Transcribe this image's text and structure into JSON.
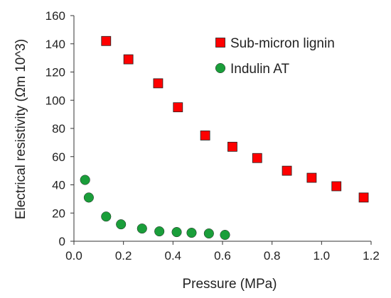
{
  "chart_data": {
    "type": "scatter",
    "xlabel": "Pressure (MPa)",
    "ylabel": "Electrical resistivity (Ωm 10^3)",
    "xlim": [
      0,
      1.2
    ],
    "ylim": [
      0,
      160
    ],
    "xticks": [
      "0.0",
      "0.2",
      "0.4",
      "0.6",
      "0.8",
      "1.0",
      "1.2"
    ],
    "yticks": [
      "0",
      "20",
      "40",
      "60",
      "80",
      "100",
      "120",
      "140",
      "160"
    ],
    "grid": false,
    "legend_position": "top-right",
    "series": [
      {
        "name": "Sub-micron lignin",
        "marker": "square",
        "color": "#ff0000",
        "points": [
          {
            "x": 0.13,
            "y": 142
          },
          {
            "x": 0.22,
            "y": 129
          },
          {
            "x": 0.34,
            "y": 112
          },
          {
            "x": 0.42,
            "y": 95
          },
          {
            "x": 0.53,
            "y": 75
          },
          {
            "x": 0.64,
            "y": 67
          },
          {
            "x": 0.74,
            "y": 59
          },
          {
            "x": 0.86,
            "y": 50
          },
          {
            "x": 0.96,
            "y": 45
          },
          {
            "x": 1.06,
            "y": 39
          },
          {
            "x": 1.17,
            "y": 31
          }
        ]
      },
      {
        "name": "Indulin AT",
        "marker": "circle",
        "color": "#1a9e3a",
        "points": [
          {
            "x": 0.045,
            "y": 43.5
          },
          {
            "x": 0.06,
            "y": 31
          },
          {
            "x": 0.13,
            "y": 17.5
          },
          {
            "x": 0.19,
            "y": 12
          },
          {
            "x": 0.275,
            "y": 9
          },
          {
            "x": 0.345,
            "y": 7
          },
          {
            "x": 0.415,
            "y": 6.5
          },
          {
            "x": 0.475,
            "y": 6
          },
          {
            "x": 0.545,
            "y": 5.5
          },
          {
            "x": 0.61,
            "y": 4.5
          }
        ]
      }
    ]
  }
}
